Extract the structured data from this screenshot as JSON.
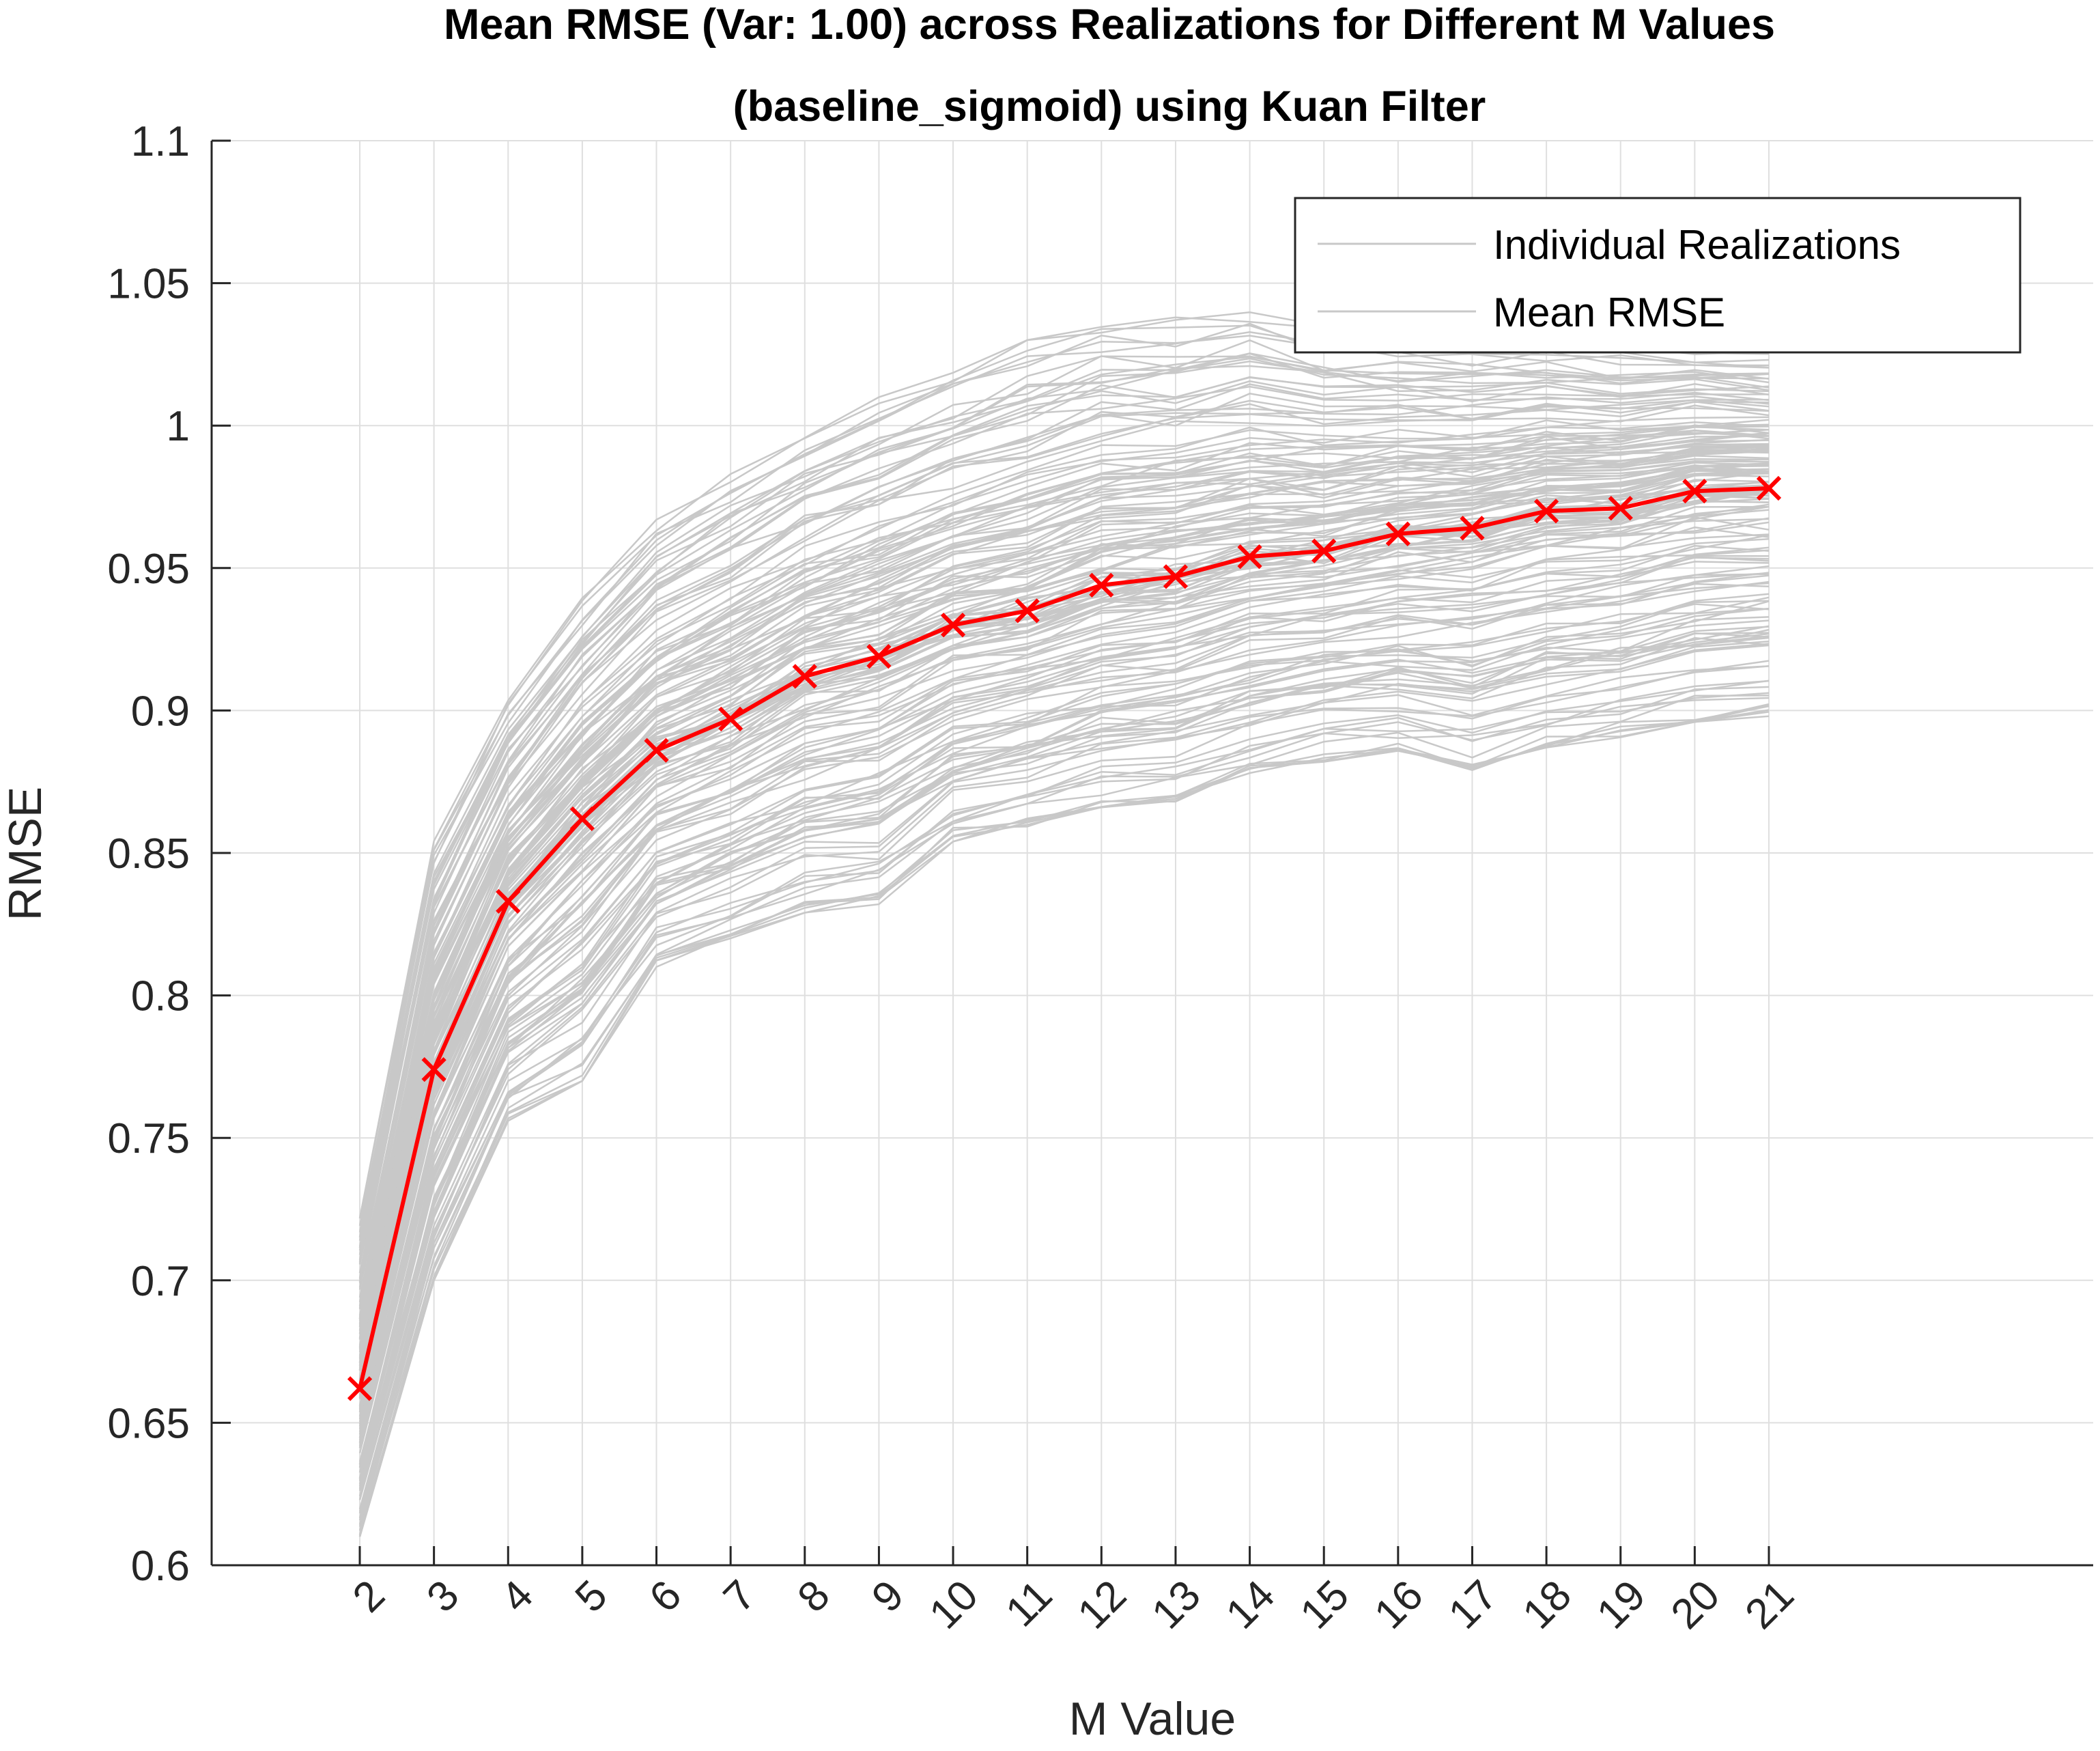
{
  "chart_data": {
    "type": "line",
    "title": [
      "Mean RMSE (Var: 1.00) across Realizations for Different M Values",
      "(baseline_sigmoid) using Kuan Filter"
    ],
    "xlabel": "M Value",
    "ylabel": "RMSE",
    "x": [
      2,
      3,
      4,
      5,
      6,
      7,
      8,
      9,
      10,
      11,
      12,
      13,
      14,
      15,
      16,
      17,
      18,
      19,
      20,
      21
    ],
    "xlim": [
      0,
      24
    ],
    "ylim": [
      0.6,
      1.1
    ],
    "yticks": [
      0.6,
      0.65,
      0.7,
      0.75,
      0.8,
      0.85,
      0.9,
      0.95,
      1,
      1.05,
      1.1
    ],
    "ytick_labels": [
      "0.6",
      "0.65",
      "0.7",
      "0.75",
      "0.8",
      "0.85",
      "0.9",
      "0.95",
      "1",
      "1.05",
      "1.1"
    ],
    "xtick_labels": [
      "2",
      "3",
      "4",
      "5",
      "6",
      "7",
      "8",
      "9",
      "10",
      "11",
      "12",
      "13",
      "14",
      "15",
      "16",
      "17",
      "18",
      "19",
      "20",
      "21"
    ],
    "grid": true,
    "legend": {
      "placement": "top-right",
      "entries": [
        "Individual Realizations",
        "Mean RMSE"
      ]
    },
    "series": [
      {
        "name": "Mean RMSE",
        "color": "#ff0000",
        "marker": "x",
        "values": [
          0.662,
          0.774,
          0.833,
          0.862,
          0.886,
          0.897,
          0.912,
          0.919,
          0.93,
          0.935,
          0.944,
          0.947,
          0.954,
          0.956,
          0.962,
          0.964,
          0.97,
          0.971,
          0.977,
          0.978
        ]
      }
    ],
    "realizations": {
      "name": "Individual Realizations",
      "color": "#c8c8c8",
      "count": 160,
      "upper_envelope": [
        0.722,
        0.855,
        0.905,
        0.94,
        0.967,
        0.983,
        0.998,
        1.01,
        1.02,
        1.03,
        1.037,
        1.038,
        1.041,
        1.035,
        1.032,
        1.03,
        1.03,
        1.028,
        1.027,
        1.026
      ],
      "lower_envelope": [
        0.61,
        0.7,
        0.756,
        0.77,
        0.81,
        0.82,
        0.829,
        0.832,
        0.854,
        0.859,
        0.866,
        0.868,
        0.877,
        0.882,
        0.884,
        0.879,
        0.887,
        0.89,
        0.896,
        0.898
      ]
    }
  }
}
